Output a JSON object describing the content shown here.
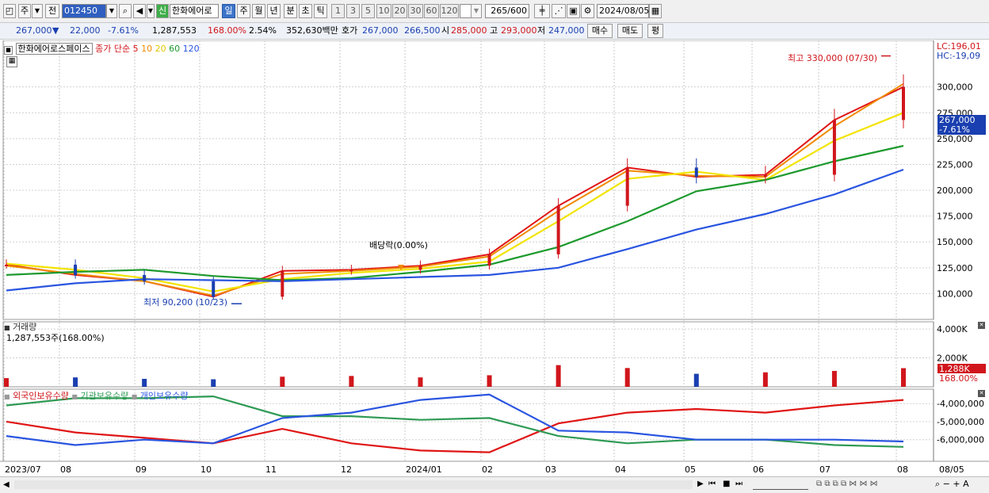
{
  "toolbar": {
    "mode_label": "주",
    "prev_label": "전",
    "code_value": "012450",
    "credit_badge": "신",
    "stock_name": "한화에어로",
    "period_tabs": [
      "일",
      "주",
      "월",
      "년",
      "분",
      "초",
      "틱"
    ],
    "selected_period": "일",
    "n_buttons": [
      "1",
      "3",
      "5",
      "10",
      "20",
      "30",
      "60",
      "120"
    ],
    "count_value": "265",
    "count_total": "/600",
    "date_value": "2024/08/05"
  },
  "quote": {
    "price": "267,000",
    "change": "22,000",
    "change_pct": "-7.61%",
    "volume": "1,287,553",
    "volume_ratio": "168.00%",
    "turnover": "2.54%",
    "amount": "352,630백만",
    "hoga_label": "호가",
    "ask": "267,000",
    "bid": "266,500",
    "open_label": "시",
    "open": "285,000",
    "high_label": "고",
    "high": "293,000",
    "low_label": "저",
    "low": "247,000",
    "buy_label": "매수",
    "sell_label": "매도",
    "pyeong_label": "평"
  },
  "legend": {
    "name": "한화에어로스페이스",
    "price_type": "종가",
    "ma_type": "단순",
    "ma_periods": [
      "5",
      "10",
      "20",
      "60",
      "120"
    ]
  },
  "colors": {
    "up": "#d0161c",
    "down": "#1a3fb0",
    "ma5": "#e01515",
    "ma10": "#f08a00",
    "ma20": "#f2e400",
    "ma60": "#1e9a2e",
    "ma120": "#2a55e0",
    "foreign": "#e01515",
    "inst": "#2f9a55",
    "retail": "#2a55e0"
  },
  "annotations": {
    "high": "최고 330,000 (07/30)",
    "low": "최저 90,200 (10/23)",
    "dividend": "배당락(0.00%)",
    "lc": "LC:196,01",
    "hc": "HC:-19,09",
    "cur_price": "267,000",
    "cur_pct": "-7.61%",
    "vol_cur": "1,288K",
    "vol_pct": "168.00%",
    "vol_title": "거래량",
    "vol_value": "1,287,553주(168.00%)"
  },
  "holdings_legend": [
    "외국인보유수량",
    "기관보유수량",
    "개인보유수량"
  ],
  "x_labels": [
    "2023/07",
    "08",
    "09",
    "10",
    "11",
    "12",
    "2024/01",
    "02",
    "03",
    "04",
    "05",
    "06",
    "07",
    "08",
    "08/05"
  ],
  "chart_data": [
    {
      "type": "line",
      "title": "한화에어로스페이스 종가 단순 5 10 20 60 120",
      "x": [
        "2023/07",
        "2023/08",
        "2023/09",
        "2023/10",
        "2023/11",
        "2023/12",
        "2024/01",
        "2024/02",
        "2024/03",
        "2024/04",
        "2024/05",
        "2024/06",
        "2024/07",
        "2024/08"
      ],
      "series": [
        {
          "name": "5",
          "values": [
            128000,
            118000,
            112000,
            97000,
            122000,
            123000,
            127000,
            138000,
            185000,
            222000,
            213000,
            215000,
            268000,
            300000
          ]
        },
        {
          "name": "10",
          "values": [
            127000,
            119000,
            112000,
            98000,
            119000,
            122000,
            126000,
            136000,
            180000,
            219000,
            214000,
            213000,
            262000,
            303000
          ]
        },
        {
          "name": "20",
          "values": [
            129000,
            123000,
            115000,
            102000,
            114000,
            120000,
            124000,
            131000,
            170000,
            211000,
            218000,
            210000,
            248000,
            275000
          ]
        },
        {
          "name": "60",
          "values": [
            118000,
            121000,
            123000,
            117000,
            113000,
            115000,
            121000,
            128000,
            145000,
            170000,
            199000,
            210000,
            228000,
            243000
          ]
        },
        {
          "name": "120",
          "values": [
            103000,
            110000,
            114000,
            113000,
            112000,
            114000,
            116000,
            118000,
            125000,
            143000,
            162000,
            177000,
            196000,
            220000
          ]
        }
      ],
      "ylim": [
        75000,
        345000
      ],
      "y_ticks": [
        "100,000",
        "125,000",
        "150,000",
        "175,000",
        "200,000",
        "225,000",
        "250,000",
        "275,000",
        "300,000"
      ],
      "high": 330000,
      "low": 90200
    },
    {
      "type": "bar",
      "title": "거래량",
      "x": [
        "2023/07",
        "2023/08",
        "2023/09",
        "2023/10",
        "2023/11",
        "2023/12",
        "2024/01",
        "2024/02",
        "2024/03",
        "2024/04",
        "2024/05",
        "2024/06",
        "2024/07",
        "2024/08"
      ],
      "values": [
        600,
        650,
        550,
        520,
        700,
        750,
        650,
        800,
        1500,
        1300,
        900,
        1000,
        1100,
        1288
      ],
      "unit": "K",
      "y_ticks": [
        "2,000K",
        "4,000K"
      ],
      "ylim": [
        0,
        4500
      ]
    },
    {
      "type": "line",
      "title": "보유수량",
      "x": [
        "2023/07",
        "2023/08",
        "2023/09",
        "2023/10",
        "2023/11",
        "2023/12",
        "2024/01",
        "2024/02",
        "2024/03",
        "2024/04",
        "2024/05",
        "2024/06",
        "2024/07",
        "2024/08"
      ],
      "series": [
        {
          "name": "외국인보유수량",
          "values": [
            -5000000,
            -5600000,
            -5900000,
            -6200000,
            -5400000,
            -6200000,
            -6600000,
            -6700000,
            -5100000,
            -4500000,
            -4300000,
            -4500000,
            -4100000,
            -3800000
          ]
        },
        {
          "name": "기관보유수량",
          "values": [
            -4100000,
            -3700000,
            -3700000,
            -3600000,
            -4700000,
            -4700000,
            -4900000,
            -4800000,
            -5800000,
            -6200000,
            -6000000,
            -6000000,
            -6300000,
            -6400000
          ]
        },
        {
          "name": "개인보유수량",
          "values": [
            -5800000,
            -6300000,
            -6000000,
            -6200000,
            -4800000,
            -4500000,
            -3800000,
            -3500000,
            -5500000,
            -5600000,
            -6000000,
            -6000000,
            -6000000,
            -6100000
          ]
        }
      ],
      "ylim": [
        -7200000,
        -3200000
      ],
      "y_ticks": [
        "-4,000,000",
        "-5,000,000",
        "-6,000,000"
      ]
    }
  ]
}
